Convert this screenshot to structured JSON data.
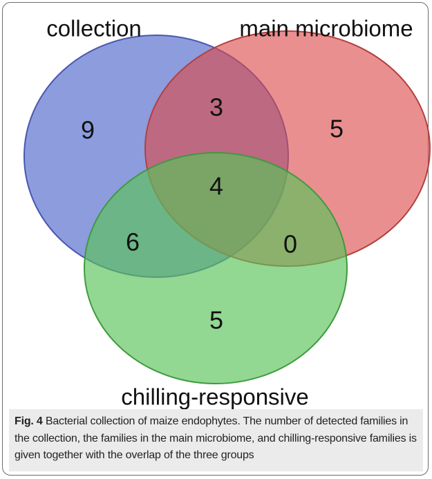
{
  "sets": [
    {
      "label": "collection"
    },
    {
      "label": "main microbiome"
    },
    {
      "label": "chilling-responsive"
    }
  ],
  "regions": {
    "collection_only": "9",
    "collection_main": "3",
    "main_only": "5",
    "all_three": "4",
    "collection_chilling": "6",
    "main_chilling": "0",
    "chilling_only": "5"
  },
  "caption": {
    "label": "Fig. 4",
    "text": "Bacterial collection of maize endophytes. The number of detected families in the collection, the families in the main microbiome, and chilling-responsive families is given together with the overlap of the three groups"
  }
}
